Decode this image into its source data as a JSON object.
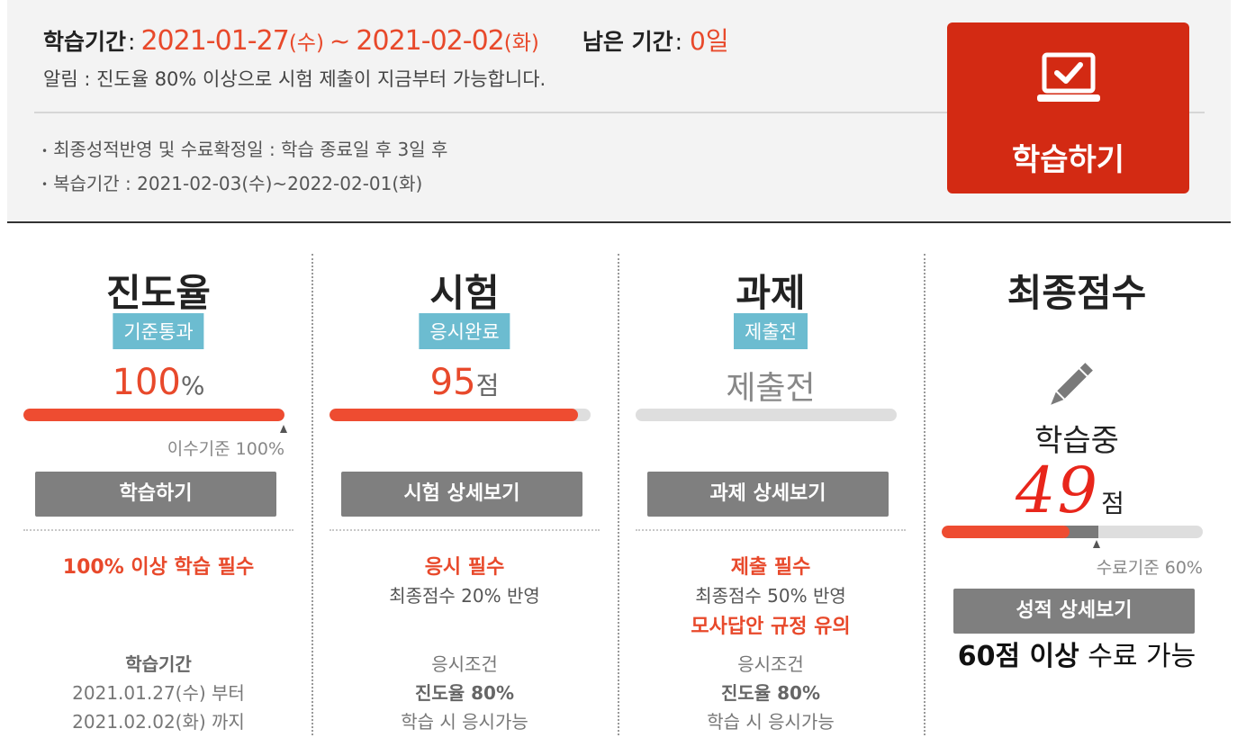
{
  "summary": {
    "period_label": "학습기간",
    "start_date": "2021-01-27",
    "start_day": "(수)",
    "tilde": "~",
    "end_date": "2021-02-02",
    "end_day": "(화)",
    "remaining_label": "남은 기간",
    "remaining_value": "0일",
    "notice": "알림 : 진도율 80% 이상으로 시험 제출이 지금부터 가능합니다.",
    "info": [
      "최종성적반영 및 수료확정일 : 학습 종료일 후 3일 후",
      "복습기간 : 2021-02-03(수)~2022-02-01(화)"
    ],
    "study_button": "학습하기"
  },
  "progress": {
    "title": "진도율",
    "badge": "기준통과",
    "value": "100",
    "unit": "%",
    "fill_percent": 100,
    "criteria": "이수기준 100%",
    "button": "학습하기",
    "requirement": "100% 이상 학습 필수",
    "period_title": "학습기간",
    "period_from": "2021.01.27(수) 부터",
    "period_to": "2021.02.02(화) 까지"
  },
  "exam": {
    "title": "시험",
    "badge": "응시완료",
    "value": "95",
    "unit": "점",
    "fill_percent": 95,
    "button": "시험 상세보기",
    "requirement": "응시 필수",
    "weight": "최종점수 20% 반영",
    "cond_title": "응시조건",
    "cond_value": "진도율 80%",
    "cond_desc": "학습 시 응시가능"
  },
  "assignment": {
    "title": "과제",
    "badge": "제출전",
    "value": "제출전",
    "fill_percent": 0,
    "button": "과제 상세보기",
    "requirement": "제출 필수",
    "weight": "최종점수 50% 반영",
    "warning": "모사답안 규정 유의",
    "cond_title": "응시조건",
    "cond_value": "진도율 80%",
    "cond_desc": "학습 시 응시가능"
  },
  "final": {
    "title": "최종점수",
    "status": "학습중",
    "score": "49",
    "unit": "점",
    "fill_percent": 49,
    "pass_percent": 60,
    "criteria": "수료기준 60%",
    "button": "성적 상세보기",
    "note_bold": "60점 이상",
    "note_rest": " 수료 가능"
  },
  "colors": {
    "accent_red": "#e8492b",
    "button_red": "#d32a13",
    "badge_blue": "#6cbcd0",
    "button_gray": "#7f7f7f"
  },
  "icons": [
    "laptop-check-icon",
    "pencil-icon"
  ]
}
